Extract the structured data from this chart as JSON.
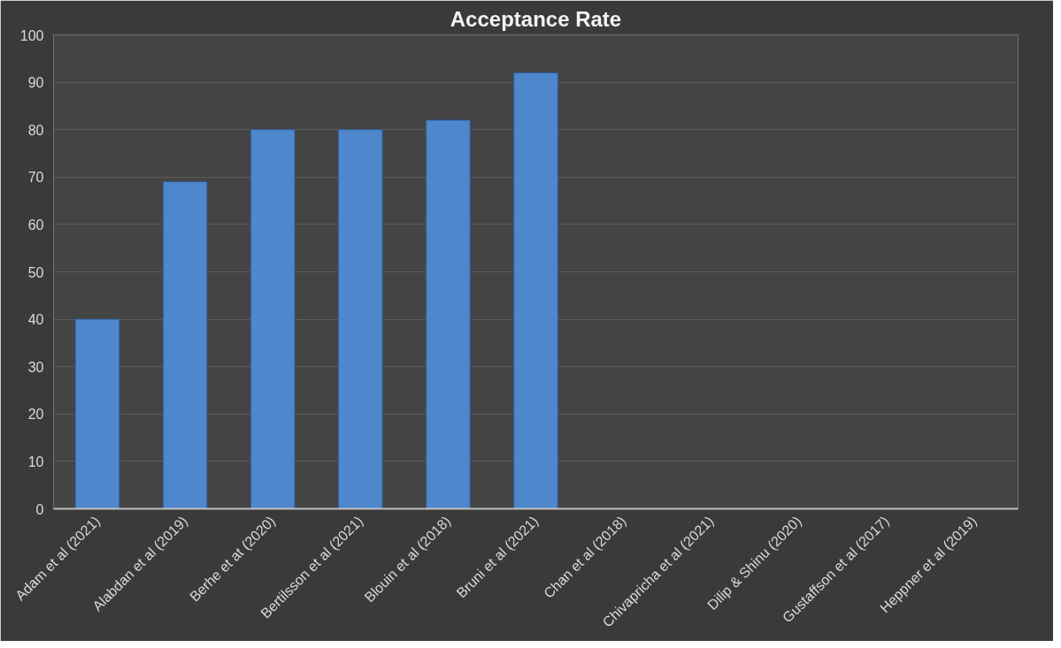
{
  "chart_data": {
    "type": "bar",
    "title": "Acceptance Rate",
    "categories": [
      "Adam et al (2021)",
      "Alabdan et al (2019)",
      "Berhe et at (2020)",
      "Bertilsson et al (2021)",
      "Blouin et al (2018)",
      "Bruni et al (2021)",
      "Chan et al (2018)",
      "Chivapricha et al (2021)",
      "Dilip & Shinu (2020)",
      "Gustaffson et al (2017)",
      "Heppner et al (2019)"
    ],
    "values": [
      40,
      69,
      80,
      80,
      82,
      92,
      null,
      null,
      null,
      null,
      null
    ],
    "color": "#4f87cc",
    "ylim": [
      0,
      100
    ],
    "yticks": [
      0,
      10,
      20,
      30,
      40,
      50,
      60,
      70,
      80,
      90,
      100
    ],
    "grid": "y"
  }
}
